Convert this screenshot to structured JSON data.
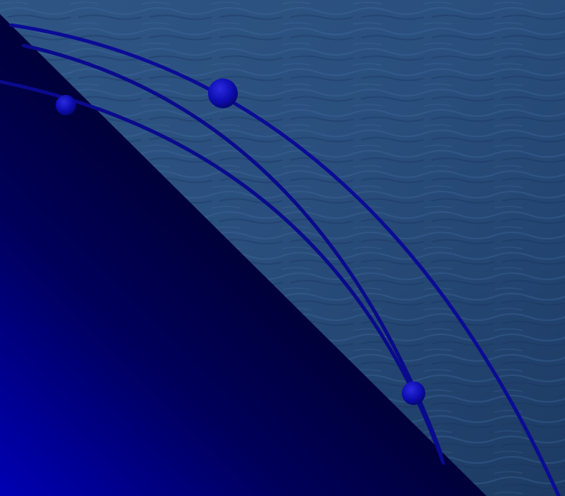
{
  "scene": {
    "water_color": "#2a4f7e",
    "water_highlight": "#3a6597",
    "triangle_edge_color": "#000010",
    "triangle_corner_color": "#0000b0",
    "curve_color": "#0d0d9a",
    "orb_color": "#1010b8"
  }
}
